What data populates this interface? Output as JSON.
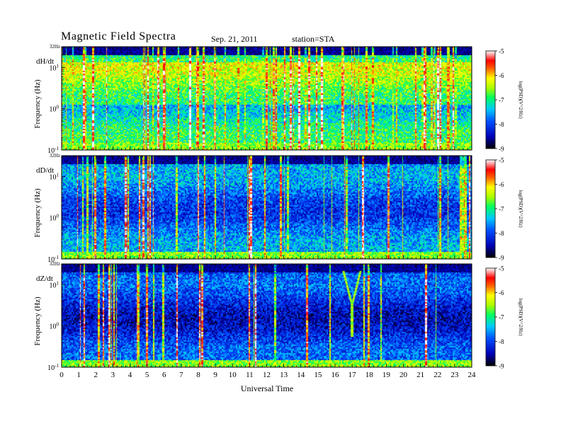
{
  "header": {
    "title": "Magnetic  Field  Spectra",
    "date": "Sep. 21, 2011",
    "station": "station=STA"
  },
  "chart_data": {
    "type": "heatmap",
    "panels": [
      {
        "component": "dH/dt",
        "ylabel": "Frequency  (Hz)",
        "activity": "high"
      },
      {
        "component": "dD/dt",
        "ylabel": "Frequency  (Hz)",
        "activity": "medium"
      },
      {
        "component": "dZ/dt",
        "ylabel": "Frequency  (Hz)",
        "activity": "low"
      }
    ],
    "x": {
      "label": "Universal Time",
      "range": [
        0,
        24
      ],
      "ticks": [
        "0",
        "1",
        "2",
        "3",
        "4",
        "5",
        "6",
        "7",
        "8",
        "9",
        "10",
        "11",
        "12",
        "13",
        "14",
        "15",
        "16",
        "17",
        "18",
        "19",
        "20",
        "21",
        "22",
        "23",
        "24"
      ]
    },
    "y": {
      "scale": "log",
      "range": [
        0.1,
        32
      ],
      "top_label": "32Hz",
      "tick_labels": [
        {
          "base": "10",
          "exp": "1",
          "value": 10
        },
        {
          "base": "10",
          "exp": "0",
          "value": 1
        },
        {
          "base": "10",
          "exp": "-1",
          "value": 0.1
        }
      ]
    },
    "colorbar": {
      "label": "log(PSD)(V^2/Hz)",
      "range": [
        -9,
        -5
      ],
      "ticks": [
        "-5",
        "-6",
        "-7",
        "-8",
        "-9"
      ]
    }
  }
}
